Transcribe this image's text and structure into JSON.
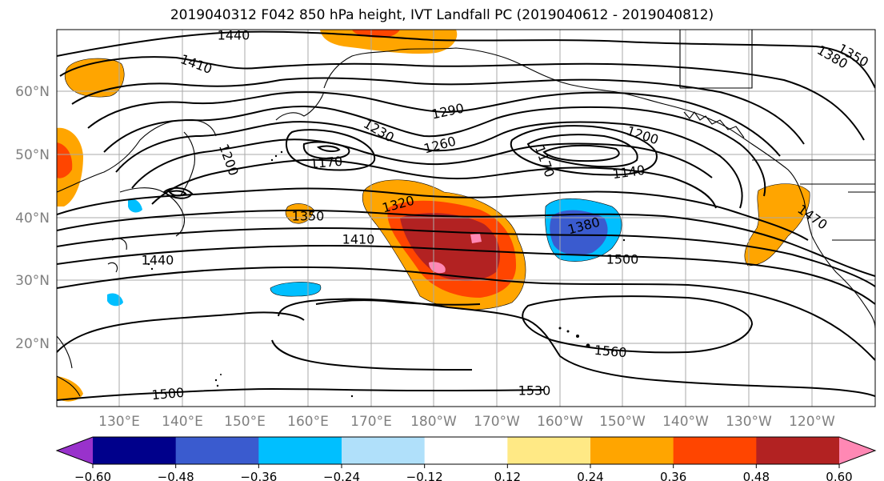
{
  "title": "2019040312 F042 850 hPa height, IVT Landfall PC (2019040612 - 2019040812)",
  "lon_ticks": [
    "130°E",
    "140°E",
    "150°E",
    "160°E",
    "170°E",
    "180°W",
    "170°W",
    "160°W",
    "150°W",
    "140°W",
    "130°W",
    "120°W"
  ],
  "lat_ticks": [
    "60°N",
    "50°N",
    "40°N",
    "30°N",
    "20°N"
  ],
  "contour_labels": [
    "1440",
    "1410",
    "1290",
    "1230",
    "1200",
    "1170",
    "1260",
    "1200",
    "1170",
    "1140",
    "1350",
    "1320",
    "1380",
    "1410",
    "1500",
    "1440",
    "1470",
    "1560",
    "1500",
    "1530",
    "1380",
    "1350"
  ],
  "colorbar": {
    "colors": [
      "#9932cc",
      "#00008b",
      "#3a5bcf",
      "#00bfff",
      "#b0e0fa",
      "#ffffff",
      "#ffe985",
      "#ffa500",
      "#ff4500",
      "#b22222",
      "#ff88b4"
    ],
    "tick_labels": [
      "−0.60",
      "−0.48",
      "−0.36",
      "−0.24",
      "−0.12",
      "0.12",
      "0.24",
      "0.36",
      "0.48",
      "0.60"
    ]
  }
}
